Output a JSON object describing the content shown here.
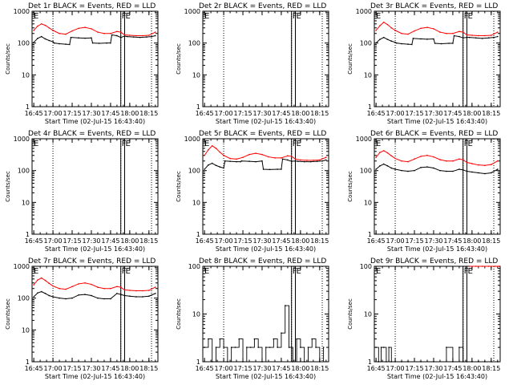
{
  "page": {
    "colors": {
      "events": "#000000",
      "lld": "#ff0000",
      "background": "#ffffff"
    },
    "x_tick_labels": [
      "16:45",
      "17:00",
      "17:15",
      "17:30",
      "17:45",
      "18:00",
      "18:15"
    ],
    "y_tick_labels": [
      "1",
      "10",
      "100",
      "1000"
    ],
    "y_axis_label": "Counts/sec",
    "x_axis_label": "Start Time (02-Jul-15 16:43:40)",
    "marker_F": "F",
    "marker_E": "E"
  },
  "chart_data": [
    {
      "type": "line",
      "title": "Det 1r BLACK = Events, RED = LLD",
      "xlabel": "Start Time (02-Jul-15 16:43:40)",
      "ylabel": "Counts/sec",
      "y_scale": "log",
      "ylim": [
        1,
        1000
      ],
      "xlim": [
        "16:43:40",
        "18:22:00"
      ],
      "vlines_dotted": [
        "17:00",
        "17:53",
        "18:17"
      ],
      "vlines_solid": [
        "17:53",
        "17:56"
      ],
      "series": [
        {
          "name": "Events",
          "color": "#000000",
          "x": [
            "16:45",
            "16:48",
            "16:51",
            "16:54",
            "16:57",
            "17:00",
            "17:01",
            "17:05",
            "17:10",
            "17:13",
            "17:14",
            "17:20",
            "17:25",
            "17:30",
            "17:31",
            "17:36",
            "17:42",
            "17:45",
            "17:46",
            "17:50",
            "17:53",
            "17:56",
            "17:58",
            "18:03",
            "18:08",
            "18:13",
            "18:17",
            "18:20"
          ],
          "values": [
            105,
            140,
            160,
            135,
            120,
            110,
            100,
            95,
            92,
            90,
            150,
            145,
            142,
            145,
            100,
            98,
            100,
            100,
            180,
            170,
            150,
            165,
            160,
            155,
            150,
            155,
            160,
            170
          ]
        },
        {
          "name": "LLD",
          "color": "#ff0000",
          "x": [
            "16:45",
            "16:48",
            "16:51",
            "16:54",
            "16:57",
            "17:00",
            "17:05",
            "17:10",
            "17:15",
            "17:20",
            "17:25",
            "17:30",
            "17:35",
            "17:40",
            "17:45",
            "17:50",
            "17:53",
            "17:56",
            "18:00",
            "18:05",
            "18:10",
            "18:15",
            "18:20"
          ],
          "values": [
            250,
            340,
            400,
            360,
            300,
            250,
            200,
            190,
            240,
            290,
            310,
            280,
            220,
            200,
            200,
            230,
            220,
            180,
            175,
            170,
            170,
            175,
            220
          ]
        }
      ]
    },
    {
      "type": "line",
      "title": "Det 2r BLACK = Events, RED = LLD",
      "xlabel": "Start Time (02-Jul-15 16:43:40)",
      "ylabel": "Counts/sec",
      "y_scale": "log",
      "ylim": [
        1,
        1000
      ],
      "xlim": [
        "16:43:40",
        "18:22:00"
      ],
      "vlines_dotted": [
        "17:00",
        "17:53",
        "18:17"
      ],
      "vlines_solid": [
        "17:53",
        "17:56"
      ],
      "series": []
    },
    {
      "type": "line",
      "title": "Det 3r BLACK = Events, RED = LLD",
      "xlabel": "Start Time (02-Jul-15 16:43:40)",
      "ylabel": "Counts/sec",
      "y_scale": "log",
      "ylim": [
        1,
        1000
      ],
      "xlim": [
        "16:43:40",
        "18:22:00"
      ],
      "vlines_dotted": [
        "17:00",
        "17:53",
        "18:17"
      ],
      "vlines_solid": [
        "17:53",
        "17:56"
      ],
      "series": [
        {
          "name": "Events",
          "color": "#000000",
          "x": [
            "16:45",
            "16:48",
            "16:51",
            "16:54",
            "16:57",
            "17:00",
            "17:01",
            "17:05",
            "17:10",
            "17:13",
            "17:14",
            "17:20",
            "17:25",
            "17:30",
            "17:31",
            "17:36",
            "17:42",
            "17:45",
            "17:46",
            "17:50",
            "17:53",
            "17:56",
            "17:58",
            "18:03",
            "18:08",
            "18:13",
            "18:17",
            "18:20"
          ],
          "values": [
            100,
            130,
            150,
            130,
            115,
            105,
            100,
            95,
            92,
            90,
            140,
            135,
            132,
            135,
            98,
            95,
            98,
            98,
            170,
            160,
            145,
            150,
            150,
            145,
            140,
            145,
            150,
            160
          ]
        },
        {
          "name": "LLD",
          "color": "#ff0000",
          "x": [
            "16:45",
            "16:48",
            "16:51",
            "16:54",
            "16:57",
            "17:00",
            "17:05",
            "17:10",
            "17:15",
            "17:20",
            "17:25",
            "17:30",
            "17:35",
            "17:40",
            "17:45",
            "17:50",
            "17:53",
            "17:56",
            "18:00",
            "18:05",
            "18:10",
            "18:15",
            "18:20"
          ],
          "values": [
            250,
            350,
            450,
            380,
            300,
            250,
            200,
            190,
            240,
            290,
            310,
            280,
            220,
            200,
            200,
            230,
            220,
            180,
            175,
            170,
            170,
            175,
            220
          ]
        }
      ]
    },
    {
      "type": "line",
      "title": "Det 4r BLACK = Events, RED = LLD",
      "xlabel": "Start Time (02-Jul-15 16:43:40)",
      "ylabel": "Counts/sec",
      "y_scale": "log",
      "ylim": [
        1,
        1000
      ],
      "xlim": [
        "16:43:40",
        "18:22:00"
      ],
      "vlines_dotted": [
        "17:00",
        "17:53",
        "18:17"
      ],
      "vlines_solid": [
        "17:53",
        "17:56"
      ],
      "series": []
    },
    {
      "type": "line",
      "title": "Det 5r BLACK = Events, RED = LLD",
      "xlabel": "Start Time (02-Jul-15 16:43:40)",
      "ylabel": "Counts/sec",
      "y_scale": "log",
      "ylim": [
        1,
        1000
      ],
      "xlim": [
        "16:43:40",
        "18:22:00"
      ],
      "vlines_dotted": [
        "17:00",
        "17:53",
        "18:17"
      ],
      "vlines_solid": [
        "17:53",
        "17:56"
      ],
      "series": [
        {
          "name": "Events",
          "color": "#000000",
          "x": [
            "16:45",
            "16:48",
            "16:51",
            "16:54",
            "16:57",
            "17:00",
            "17:01",
            "17:05",
            "17:10",
            "17:13",
            "17:14",
            "17:20",
            "17:25",
            "17:30",
            "17:31",
            "17:36",
            "17:42",
            "17:45",
            "17:46",
            "17:50",
            "17:53",
            "17:56",
            "17:58",
            "18:03",
            "18:08",
            "18:13",
            "18:17",
            "18:20"
          ],
          "values": [
            110,
            150,
            170,
            145,
            130,
            120,
            200,
            195,
            190,
            190,
            200,
            195,
            190,
            200,
            110,
            108,
            110,
            110,
            230,
            215,
            195,
            200,
            195,
            190,
            190,
            195,
            200,
            215
          ]
        },
        {
          "name": "LLD",
          "color": "#ff0000",
          "x": [
            "16:45",
            "16:48",
            "16:51",
            "16:54",
            "16:57",
            "17:00",
            "17:05",
            "17:10",
            "17:15",
            "17:20",
            "17:25",
            "17:30",
            "17:35",
            "17:40",
            "17:45",
            "17:50",
            "17:53",
            "17:56",
            "18:00",
            "18:05",
            "18:10",
            "18:15",
            "18:20"
          ],
          "values": [
            300,
            450,
            600,
            500,
            380,
            300,
            240,
            230,
            260,
            320,
            350,
            320,
            270,
            250,
            250,
            290,
            280,
            230,
            215,
            210,
            210,
            215,
            260
          ]
        }
      ]
    },
    {
      "type": "line",
      "title": "Det 6r BLACK = Events, RED = LLD",
      "xlabel": "Start Time (02-Jul-15 16:43:40)",
      "ylabel": "Counts/sec",
      "y_scale": "log",
      "ylim": [
        1,
        1000
      ],
      "xlim": [
        "16:43:40",
        "18:22:00"
      ],
      "vlines_dotted": [
        "17:00",
        "17:53",
        "18:17"
      ],
      "vlines_solid": [
        "17:53",
        "17:56"
      ],
      "series": [
        {
          "name": "Events",
          "color": "#000000",
          "x": [
            "16:45",
            "16:48",
            "16:51",
            "16:54",
            "16:57",
            "17:00",
            "17:05",
            "17:10",
            "17:15",
            "17:20",
            "17:25",
            "17:30",
            "17:35",
            "17:40",
            "17:45",
            "17:50",
            "17:53",
            "17:56",
            "18:00",
            "18:05",
            "18:10",
            "18:15",
            "18:20"
          ],
          "values": [
            110,
            140,
            160,
            140,
            120,
            110,
            100,
            95,
            100,
            125,
            130,
            120,
            100,
            95,
            95,
            110,
            105,
            95,
            90,
            85,
            80,
            85,
            110
          ]
        },
        {
          "name": "LLD",
          "color": "#ff0000",
          "x": [
            "16:45",
            "16:48",
            "16:51",
            "16:54",
            "16:57",
            "17:00",
            "17:05",
            "17:10",
            "17:15",
            "17:20",
            "17:25",
            "17:30",
            "17:35",
            "17:40",
            "17:45",
            "17:50",
            "17:53",
            "17:56",
            "18:00",
            "18:05",
            "18:10",
            "18:15",
            "18:20"
          ],
          "values": [
            260,
            370,
            420,
            360,
            290,
            240,
            200,
            190,
            230,
            280,
            300,
            270,
            220,
            200,
            200,
            230,
            220,
            180,
            165,
            150,
            145,
            155,
            200
          ]
        }
      ]
    },
    {
      "type": "line",
      "title": "Det 7r BLACK = Events, RED = LLD",
      "xlabel": "Start Time (02-Jul-15 16:43:40)",
      "ylabel": "Counts/sec",
      "y_scale": "log",
      "ylim": [
        1,
        1000
      ],
      "xlim": [
        "16:43:40",
        "18:22:00"
      ],
      "vlines_dotted": [
        "17:00",
        "17:53",
        "18:17"
      ],
      "vlines_solid": [
        "17:53",
        "17:56"
      ],
      "series": [
        {
          "name": "Events",
          "color": "#000000",
          "x": [
            "16:45",
            "16:48",
            "16:51",
            "16:54",
            "16:57",
            "17:00",
            "17:05",
            "17:10",
            "17:15",
            "17:20",
            "17:25",
            "17:30",
            "17:35",
            "17:40",
            "17:45",
            "17:50",
            "17:53",
            "17:56",
            "18:00",
            "18:05",
            "18:10",
            "18:15",
            "18:20"
          ],
          "values": [
            110,
            145,
            160,
            140,
            120,
            110,
            100,
            95,
            100,
            125,
            130,
            120,
            100,
            95,
            95,
            140,
            130,
            120,
            115,
            110,
            110,
            115,
            140
          ]
        },
        {
          "name": "LLD",
          "color": "#ff0000",
          "x": [
            "16:45",
            "16:48",
            "16:51",
            "16:54",
            "16:57",
            "17:00",
            "17:05",
            "17:10",
            "17:15",
            "17:20",
            "17:25",
            "17:30",
            "17:35",
            "17:40",
            "17:45",
            "17:50",
            "17:53",
            "17:56",
            "18:00",
            "18:05",
            "18:10",
            "18:15",
            "18:20"
          ],
          "values": [
            260,
            370,
            430,
            360,
            290,
            240,
            200,
            190,
            230,
            280,
            300,
            270,
            220,
            200,
            200,
            230,
            220,
            180,
            175,
            170,
            170,
            175,
            220
          ]
        }
      ]
    },
    {
      "type": "line",
      "title": "Det 8r BLACK = Events, RED = LLD",
      "xlabel": "Start Time (02-Jul-15 16:43:40)",
      "ylabel": "Counts/sec",
      "y_scale": "log",
      "ylim": [
        1,
        100
      ],
      "xlim": [
        "16:43:40",
        "18:22:00"
      ],
      "vlines_dotted": [
        "17:00",
        "17:53",
        "18:17"
      ],
      "vlines_solid": [
        "17:53",
        "17:56"
      ],
      "series": [
        {
          "name": "Events",
          "color": "#000000",
          "style": "noise",
          "x": [
            "16:45",
            "16:48",
            "16:51",
            "16:54",
            "16:57",
            "17:00",
            "17:03",
            "17:06",
            "17:09",
            "17:12",
            "17:15",
            "17:18",
            "17:21",
            "17:24",
            "17:27",
            "17:30",
            "17:33",
            "17:36",
            "17:39",
            "17:42",
            "17:45",
            "17:48",
            "17:51",
            "17:54",
            "17:57",
            "18:00",
            "18:03",
            "18:06",
            "18:09",
            "18:12",
            "18:15",
            "18:18"
          ],
          "values": [
            2,
            3,
            1,
            2,
            3,
            2,
            1,
            2,
            2,
            3,
            1,
            2,
            2,
            3,
            2,
            1,
            2,
            2,
            3,
            2,
            4,
            15,
            2,
            1,
            3,
            2,
            1,
            2,
            3,
            2,
            1,
            2
          ]
        }
      ]
    },
    {
      "type": "line",
      "title": "Det 9r BLACK = Events, RED = LLD",
      "xlabel": "Start Time (02-Jul-15 16:43:40)",
      "ylabel": "Counts/sec",
      "y_scale": "log",
      "ylim": [
        1,
        100
      ],
      "xlim": [
        "16:43:40",
        "18:22:00"
      ],
      "vlines_dotted": [
        "17:00",
        "17:53",
        "18:17"
      ],
      "vlines_solid": [
        "17:53",
        "17:56"
      ],
      "series": [
        {
          "name": "Events",
          "color": "#000000",
          "style": "noise",
          "x": [
            "16:45",
            "16:47",
            "16:49",
            "16:51",
            "16:53",
            "16:55",
            "16:57",
            "17:00",
            "17:05",
            "17:10",
            "17:20",
            "17:30",
            "17:40",
            "17:45",
            "17:50",
            "17:53",
            "17:56",
            "18:00",
            "18:05",
            "18:10",
            "18:15",
            "18:20"
          ],
          "values": [
            2,
            1,
            2,
            2,
            1,
            2,
            1,
            1,
            1,
            1,
            1,
            1,
            2,
            1,
            2,
            1,
            1,
            1,
            1,
            1,
            1,
            1
          ]
        },
        {
          "name": "LLD",
          "color": "#ff0000",
          "x": [
            "17:58",
            "18:03",
            "18:08",
            "18:13",
            "18:18",
            "18:21"
          ],
          "values": [
            100,
            100,
            100,
            100,
            100,
            100
          ]
        }
      ]
    }
  ]
}
